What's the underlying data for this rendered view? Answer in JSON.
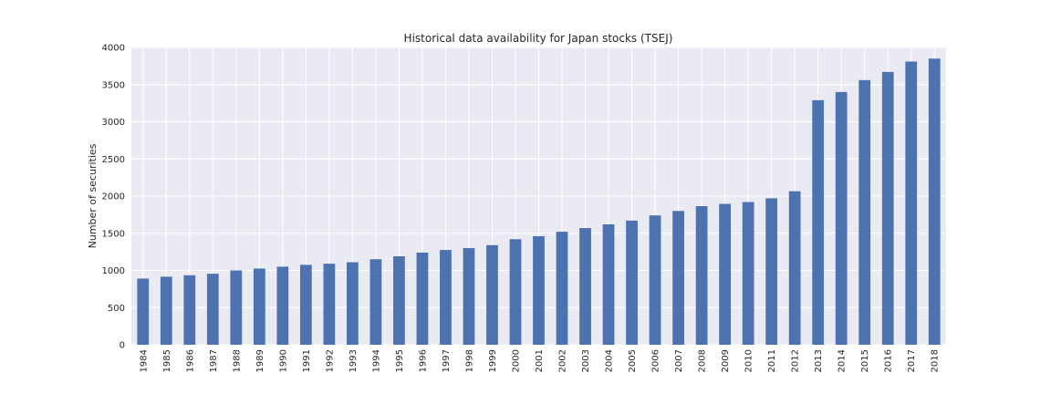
{
  "chart_data": {
    "type": "bar",
    "title": "Historical data availability for Japan stocks (TSEJ)",
    "xlabel": "",
    "ylabel": "Number of securities",
    "ylim": [
      0,
      4000
    ],
    "yticks": [
      0,
      500,
      1000,
      1500,
      2000,
      2500,
      3000,
      3500,
      4000
    ],
    "grid": true,
    "legend": "none",
    "colors": {
      "bar": "#4c72b0",
      "plot_bg": "#eaeaf2",
      "grid": "#ffffff"
    },
    "categories": [
      "1984",
      "1985",
      "1986",
      "1987",
      "1988",
      "1989",
      "1990",
      "1991",
      "1992",
      "1993",
      "1994",
      "1995",
      "1996",
      "1997",
      "1998",
      "1999",
      "2000",
      "2001",
      "2002",
      "2003",
      "2004",
      "2005",
      "2006",
      "2007",
      "2008",
      "2009",
      "2010",
      "2011",
      "2012",
      "2013",
      "2014",
      "2015",
      "2016",
      "2017",
      "2018"
    ],
    "values": [
      890,
      915,
      935,
      955,
      1000,
      1025,
      1050,
      1075,
      1090,
      1110,
      1150,
      1190,
      1240,
      1275,
      1300,
      1340,
      1420,
      1460,
      1520,
      1570,
      1620,
      1670,
      1740,
      1800,
      1865,
      1895,
      1920,
      1970,
      2065,
      3290,
      3400,
      3560,
      3670,
      3810,
      3850
    ]
  }
}
